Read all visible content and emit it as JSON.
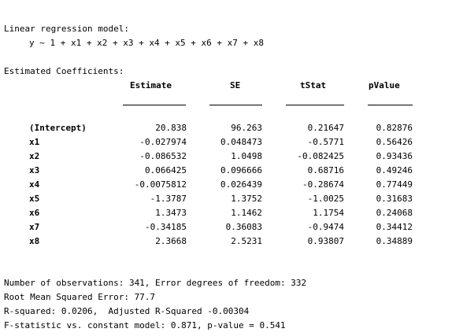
{
  "title": "Linear regression model:",
  "formula": "y ~ 1 + x1 + x2 + x3 + x4 + x5 + x6 + x7 + x8",
  "coef_title": "Estimated Coefficients:",
  "columns": [
    "Estimate",
    "SE",
    "tStat",
    "pValue"
  ],
  "rows": [
    {
      "name": "(Intercept)",
      "estimate": "20.838",
      "se": "96.263",
      "tstat": "0.21647",
      "pvalue": "0.82876"
    },
    {
      "name": "x1",
      "estimate": "-0.027974",
      "se": "0.048473",
      "tstat": "-0.5771",
      "pvalue": "0.56426"
    },
    {
      "name": "x2",
      "estimate": "-0.086532",
      "se": "1.0498",
      "tstat": "-0.082425",
      "pvalue": "0.93436"
    },
    {
      "name": "x3",
      "estimate": "0.066425",
      "se": "0.096666",
      "tstat": "0.68716",
      "pvalue": "0.49246"
    },
    {
      "name": "x4",
      "estimate": "-0.0075812",
      "se": "0.026439",
      "tstat": "-0.28674",
      "pvalue": "0.77449"
    },
    {
      "name": "x5",
      "estimate": "-1.3787",
      "se": "1.3752",
      "tstat": "-1.0025",
      "pvalue": "0.31683"
    },
    {
      "name": "x6",
      "estimate": "1.3473",
      "se": "1.1462",
      "tstat": "1.1754",
      "pvalue": "0.24068"
    },
    {
      "name": "x7",
      "estimate": "-0.34185",
      "se": "0.36083",
      "tstat": "-0.9474",
      "pvalue": "0.34412"
    },
    {
      "name": "x8",
      "estimate": "2.3668",
      "se": "2.5231",
      "tstat": "0.93807",
      "pvalue": "0.34889"
    }
  ],
  "summary": {
    "obs_line": "Number of observations: 341, Error degrees of freedom: 332",
    "rmse_line": "Root Mean Squared Error: 77.7",
    "rsq_line": "R-squared: 0.0206,  Adjusted R-Squared -0.00304",
    "fstat_line": "F-statistic vs. constant model: 0.871, p-value = 0.541"
  }
}
